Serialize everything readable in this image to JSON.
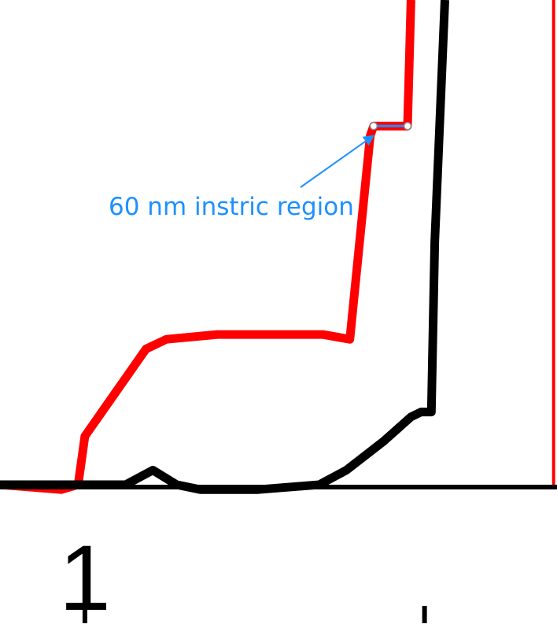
{
  "chart_data": {
    "type": "line",
    "title": "",
    "xlabel": "",
    "ylabel": "",
    "xlim": [
      0.75,
      2.39
    ],
    "ylim": [
      -0.31,
      1.0
    ],
    "grid": false,
    "x_ticks": [
      {
        "value": 1.0,
        "label": "1"
      },
      {
        "value": 2.0,
        "label": ""
      }
    ],
    "series": [
      {
        "color": "#ff0000",
        "points": [
          [
            0.75,
            0.0
          ],
          [
            0.93,
            -0.01
          ],
          [
            0.98,
            0.0
          ],
          [
            1.0,
            0.1
          ],
          [
            1.07,
            0.17
          ],
          [
            1.18,
            0.28
          ],
          [
            1.24,
            0.3
          ],
          [
            1.39,
            0.31
          ],
          [
            1.7,
            0.31
          ],
          [
            1.78,
            0.3
          ],
          [
            1.84,
            0.72
          ],
          [
            1.85,
            0.74
          ],
          [
            1.95,
            0.74
          ],
          [
            1.96,
            1.0
          ]
        ]
      },
      {
        "color": "#000000",
        "points": [
          [
            0.75,
            0.0
          ],
          [
            0.98,
            0.0
          ],
          [
            1.12,
            0.0
          ],
          [
            1.2,
            0.03
          ],
          [
            1.27,
            0.0
          ],
          [
            1.34,
            -0.01
          ],
          [
            1.51,
            -0.01
          ],
          [
            1.69,
            0.0
          ],
          [
            1.77,
            0.03
          ],
          [
            1.88,
            0.09
          ],
          [
            1.96,
            0.14
          ],
          [
            1.99,
            0.15
          ],
          [
            2.02,
            0.15
          ],
          [
            2.03,
            0.5
          ],
          [
            2.06,
            1.0
          ]
        ]
      },
      {
        "color": "#ff0000",
        "points": [
          [
            2.38,
            1.0
          ],
          [
            2.38,
            0.0
          ]
        ]
      }
    ],
    "annotations": [
      {
        "text": "60 nm instric region",
        "color": "#1e90ff",
        "target": [
          1.85,
          0.73
        ],
        "bracket": [
          [
            1.85,
            0.74
          ],
          [
            1.95,
            0.74
          ]
        ]
      }
    ]
  }
}
